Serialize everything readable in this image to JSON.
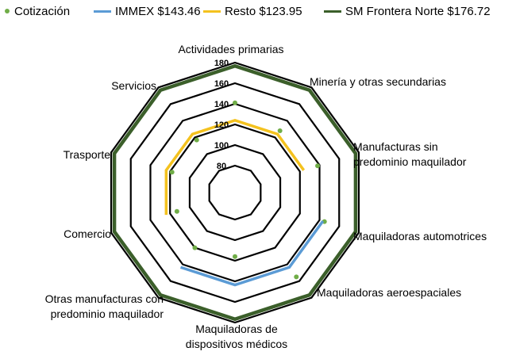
{
  "chart_data": {
    "type": "radar",
    "categories": [
      "Actividades primarias",
      "Minería y otras secundarias",
      "Manufacturas sin predominio maquilador",
      "Maquiladoras automotrices",
      "Maquiladoras aeroespaciales",
      "Maquiladoras de dispositivos médicos",
      "Otras manufacturas con predominio maquilador",
      "Comercio",
      "Trasporte",
      "Servicios"
    ],
    "category_label_lines": [
      [
        "Actividades primarias"
      ],
      [
        "Minería y otras secundarias"
      ],
      [
        "Manufacturas sin",
        "predominio maquilador"
      ],
      [
        "Maquiladoras automotrices"
      ],
      [
        "Maquiladoras aeroespaciales"
      ],
      [
        "Maquiladoras de",
        "dispositivos médicos"
      ],
      [
        "Otras manufacturas con",
        "predominio maquilador"
      ],
      [
        "Comercio"
      ],
      [
        "Trasporte"
      ],
      [
        "Servicios"
      ]
    ],
    "r_ticks": [
      80,
      100,
      120,
      140,
      160,
      180
    ],
    "r_range": [
      80,
      180
    ],
    "series": [
      {
        "name": "Cotización",
        "style": "markers",
        "color": "#70AD47",
        "values": [
          141,
          128,
          138,
          145,
          155,
          116,
          120,
          113,
          118,
          117
        ]
      },
      {
        "name": "IMMEX $143.46",
        "style": "line",
        "color": "#5B9BD5",
        "values": [
          null,
          null,
          null,
          143.46,
          143.46,
          143.46,
          143.46,
          null,
          null,
          null
        ]
      },
      {
        "name": "Resto $123.95",
        "style": "line",
        "color": "#F4C21F",
        "values": [
          123.95,
          123.95,
          123.95,
          null,
          null,
          null,
          null,
          123.95,
          123.95,
          123.95
        ]
      },
      {
        "name": "SM Frontera Norte $176.72",
        "style": "line",
        "color": "#3B5F2A",
        "values": [
          176.72,
          176.72,
          176.72,
          176.72,
          176.72,
          176.72,
          176.72,
          176.72,
          176.72,
          176.72
        ]
      }
    ],
    "grid": true,
    "legend_position": "top"
  }
}
